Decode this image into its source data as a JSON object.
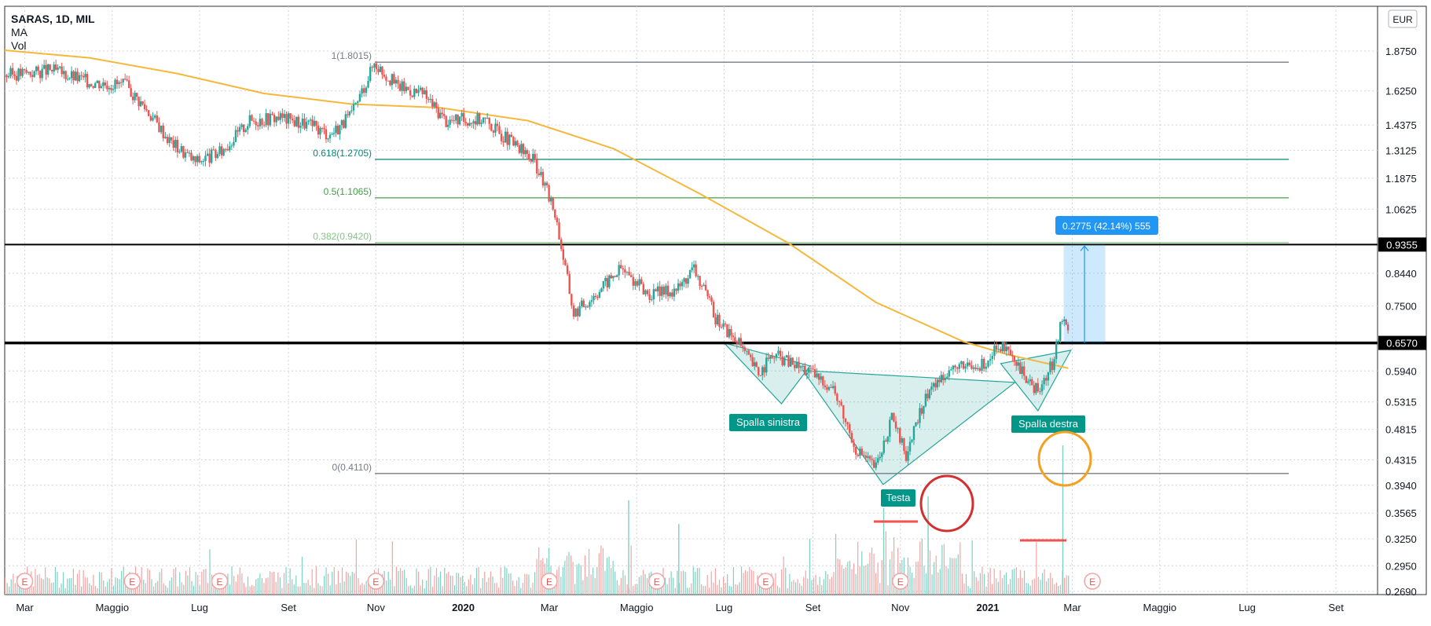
{
  "chart_data": {
    "type": "candlestick",
    "symbol_line": "SARAS, 1D, MIL",
    "indicators": [
      "MA",
      "Vol"
    ],
    "currency_button": "EUR",
    "y_ticks": [
      1.875,
      1.625,
      1.4375,
      1.3125,
      1.1875,
      1.0625,
      0.844,
      0.75,
      0.594,
      0.5315,
      0.4815,
      0.4315,
      0.394,
      0.3565,
      0.325,
      0.295,
      0.269
    ],
    "y_tick_labels": [
      "1.8750",
      "1.6250",
      "1.4375",
      "1.3125",
      "1.1875",
      "1.0625",
      "0.8440",
      "0.7500",
      "0.5940",
      "0.5315",
      "0.4815",
      "0.4315",
      "0.3940",
      "0.3565",
      "0.3250",
      "0.2950",
      "0.2690"
    ],
    "x_ticks": [
      "Mar",
      "Maggio",
      "Lug",
      "Set",
      "Nov",
      "2020",
      "Mar",
      "Maggio",
      "Lug",
      "Set",
      "Nov",
      "2021",
      "Mar",
      "Maggio",
      "Lug",
      "Set"
    ],
    "x_range": [
      "2019-02-15",
      "2021-09-30"
    ],
    "y_scale": "log",
    "grid": true,
    "price_markers": [
      {
        "value": 0.9355,
        "label": "0.9355"
      },
      {
        "value": 0.657,
        "label": "0.6570"
      }
    ],
    "fibonacci": [
      {
        "label": "1(1.8015)",
        "value": 1.8015,
        "color": "#787b86"
      },
      {
        "label": "0.618(1.2705)",
        "value": 1.2705,
        "color": "#00897b"
      },
      {
        "label": "0.5(1.1065)",
        "value": 1.1065,
        "color": "#43a047"
      },
      {
        "label": "0.382(0.9420)",
        "value": 0.942,
        "color": "#81c784"
      },
      {
        "label": "0(0.4110)",
        "value": 0.411,
        "color": "#787b86"
      }
    ],
    "annotations": [
      {
        "text": "Spalla sinistra"
      },
      {
        "text": "Testa"
      },
      {
        "text": "Spalla destra"
      },
      {
        "text": "0.2775 (42.14%) 555"
      }
    ],
    "earnings_marker": "E",
    "price_path": [
      {
        "date": "2019-02-15",
        "close": 1.72
      },
      {
        "date": "2019-03-20",
        "close": 1.75
      },
      {
        "date": "2019-04-15",
        "close": 1.68
      },
      {
        "date": "2019-05-10",
        "close": 1.66
      },
      {
        "date": "2019-05-25",
        "close": 1.52
      },
      {
        "date": "2019-06-10",
        "close": 1.36
      },
      {
        "date": "2019-06-28",
        "close": 1.26
      },
      {
        "date": "2019-07-15",
        "close": 1.3
      },
      {
        "date": "2019-08-05",
        "close": 1.46
      },
      {
        "date": "2019-08-25",
        "close": 1.48
      },
      {
        "date": "2019-09-15",
        "close": 1.44
      },
      {
        "date": "2019-09-30",
        "close": 1.39
      },
      {
        "date": "2019-10-15",
        "close": 1.49
      },
      {
        "date": "2019-10-31",
        "close": 1.8
      },
      {
        "date": "2019-11-15",
        "close": 1.66
      },
      {
        "date": "2019-12-05",
        "close": 1.6
      },
      {
        "date": "2019-12-20",
        "close": 1.46
      },
      {
        "date": "2020-01-15",
        "close": 1.47
      },
      {
        "date": "2020-02-05",
        "close": 1.34
      },
      {
        "date": "2020-02-20",
        "close": 1.26
      },
      {
        "date": "2020-03-05",
        "close": 1.05
      },
      {
        "date": "2020-03-18",
        "close": 0.73
      },
      {
        "date": "2020-04-01",
        "close": 0.78
      },
      {
        "date": "2020-04-20",
        "close": 0.86
      },
      {
        "date": "2020-05-10",
        "close": 0.78
      },
      {
        "date": "2020-05-30",
        "close": 0.8
      },
      {
        "date": "2020-06-10",
        "close": 0.86
      },
      {
        "date": "2020-06-25",
        "close": 0.72
      },
      {
        "date": "2020-07-10",
        "close": 0.66
      },
      {
        "date": "2020-07-25",
        "close": 0.59
      },
      {
        "date": "2020-08-05",
        "close": 0.63
      },
      {
        "date": "2020-08-25",
        "close": 0.6
      },
      {
        "date": "2020-09-15",
        "close": 0.56
      },
      {
        "date": "2020-10-01",
        "close": 0.45
      },
      {
        "date": "2020-10-15",
        "close": 0.42
      },
      {
        "date": "2020-10-26",
        "close": 0.5
      },
      {
        "date": "2020-11-05",
        "close": 0.44
      },
      {
        "date": "2020-11-20",
        "close": 0.55
      },
      {
        "date": "2020-12-05",
        "close": 0.6
      },
      {
        "date": "2020-12-25",
        "close": 0.6
      },
      {
        "date": "2021-01-10",
        "close": 0.65
      },
      {
        "date": "2021-01-25",
        "close": 0.59
      },
      {
        "date": "2021-02-05",
        "close": 0.55
      },
      {
        "date": "2021-02-15",
        "close": 0.61
      },
      {
        "date": "2021-02-22",
        "close": 0.72
      },
      {
        "date": "2021-02-26",
        "close": 0.68
      }
    ],
    "moving_average": [
      {
        "date": "2019-02-15",
        "value": 1.88
      },
      {
        "date": "2019-04-15",
        "value": 1.83
      },
      {
        "date": "2019-06-15",
        "value": 1.73
      },
      {
        "date": "2019-08-15",
        "value": 1.61
      },
      {
        "date": "2019-10-15",
        "value": 1.55
      },
      {
        "date": "2019-12-15",
        "value": 1.53
      },
      {
        "date": "2020-02-15",
        "value": 1.46
      },
      {
        "date": "2020-04-15",
        "value": 1.32
      },
      {
        "date": "2020-06-15",
        "value": 1.12
      },
      {
        "date": "2020-08-15",
        "value": 0.94
      },
      {
        "date": "2020-10-15",
        "value": 0.76
      },
      {
        "date": "2020-12-15",
        "value": 0.66
      },
      {
        "date": "2021-01-15",
        "value": 0.63
      },
      {
        "date": "2021-02-26",
        "value": 0.6
      }
    ]
  }
}
